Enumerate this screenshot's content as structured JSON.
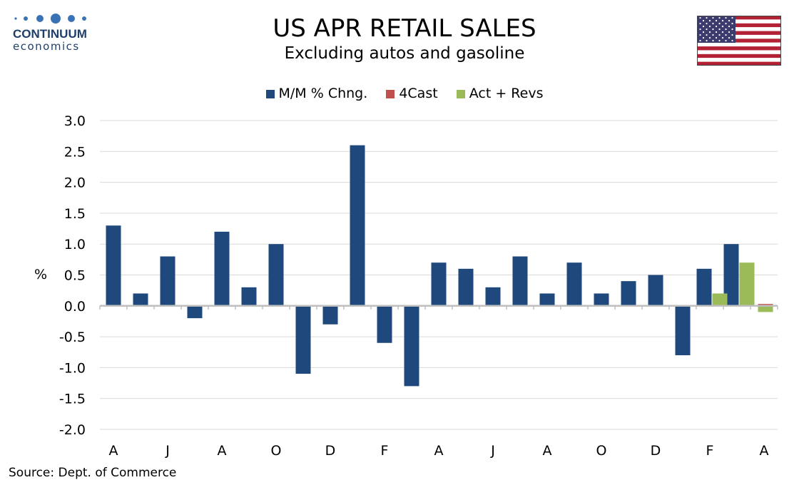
{
  "header": {
    "brand_name": "CONTINUUM",
    "brand_sub": "economics",
    "title": "US APR RETAIL SALES",
    "subtitle": "Excluding autos and gasoline"
  },
  "flag_icon": "us-flag-icon",
  "legend": [
    {
      "label": "M/M % Chng.",
      "color": "#1f497d"
    },
    {
      "label": "4Cast",
      "color": "#c0504d"
    },
    {
      "label": "Act + Revs",
      "color": "#9bbb59"
    }
  ],
  "source": "Source: Dept. of Commerce",
  "chart_data": {
    "type": "bar",
    "title": "US APR RETAIL SALES",
    "subtitle": "Excluding autos and gasoline",
    "ylabel": "%",
    "ylim": [
      -2.0,
      3.0
    ],
    "yticks": [
      "3.0",
      "2.5",
      "2.0",
      "1.5",
      "1.0",
      "0.5",
      "0.0",
      "-0.5",
      "-1.0",
      "-1.5",
      "-2.0"
    ],
    "ytick_values": [
      3.0,
      2.5,
      2.0,
      1.5,
      1.0,
      0.5,
      0.0,
      -0.5,
      -1.0,
      -1.5,
      -2.0
    ],
    "x_tick_labels": [
      "A",
      "J",
      "A",
      "O",
      "D",
      "F",
      "A",
      "J",
      "A",
      "O",
      "D",
      "F",
      "A"
    ],
    "grid": true,
    "legend_position": "top-center",
    "series": [
      {
        "name": "M/M % Chng.",
        "color": "#1f497d",
        "values": [
          1.3,
          0.2,
          0.8,
          -0.2,
          1.2,
          0.3,
          1.0,
          -1.1,
          -0.3,
          2.6,
          -0.6,
          -1.3,
          0.7,
          0.6,
          0.3,
          0.8,
          0.2,
          0.7,
          0.2,
          0.4,
          0.5,
          -0.8,
          0.6,
          1.0,
          null
        ]
      },
      {
        "name": "4Cast",
        "color": "#c0504d",
        "values": [
          null,
          null,
          null,
          null,
          null,
          null,
          null,
          null,
          null,
          null,
          null,
          null,
          null,
          null,
          null,
          null,
          null,
          null,
          null,
          null,
          null,
          null,
          null,
          null,
          0.03
        ]
      },
      {
        "name": "Act + Revs",
        "color": "#9bbb59",
        "values": [
          null,
          null,
          null,
          null,
          null,
          null,
          null,
          null,
          null,
          null,
          null,
          null,
          null,
          null,
          null,
          null,
          null,
          null,
          null,
          null,
          null,
          null,
          0.2,
          0.7,
          -0.1
        ]
      }
    ]
  }
}
